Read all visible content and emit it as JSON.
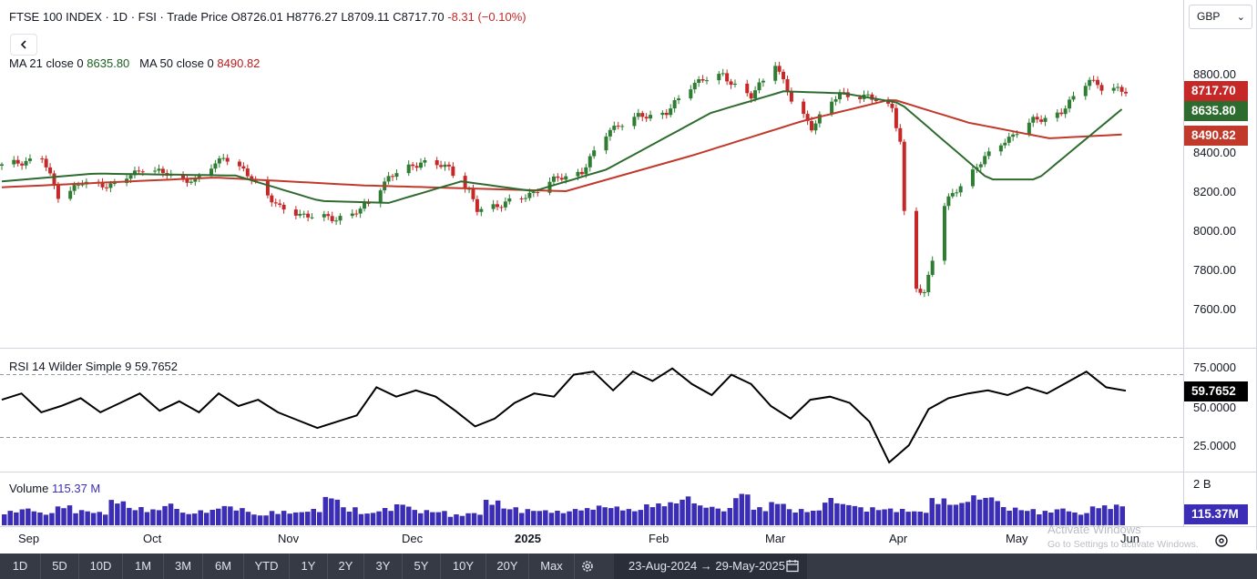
{
  "header": {
    "symbol": "FTSE 100 INDEX",
    "interval": "1D",
    "exchange": "FSI",
    "price_type": "Trade Price",
    "open": "O8726.01",
    "high": "H8776.27",
    "low": "L8709.11",
    "close": "C8717.70",
    "change": "-8.31 (−0.10%)"
  },
  "ma_legend": {
    "ma21_label": "MA 21 close 0",
    "ma21_value": "8635.80",
    "ma50_label": "MA 50 close 0",
    "ma50_value": "8490.82"
  },
  "currency": "GBP",
  "price_axis": {
    "ticks": [
      "8800.00",
      "8400.00",
      "8200.00",
      "8000.00",
      "7800.00",
      "7600.00"
    ],
    "last_price": "8717.70",
    "ma21_price": "8635.80",
    "ma50_price": "8490.82"
  },
  "rsi": {
    "label": "RSI 14 Wilder Simple 9",
    "value": "59.7652",
    "ticks": [
      "75.0000",
      "50.0000",
      "25.0000"
    ]
  },
  "volume": {
    "label": "Volume",
    "value": "115.37 M",
    "axis_top": "2 B",
    "axis_value": "115.37M"
  },
  "time_axis": [
    "Sep",
    "Oct",
    "Nov",
    "Dec",
    "2025",
    "Feb",
    "Mar",
    "Apr",
    "May",
    "Jun"
  ],
  "range_buttons": [
    "1D",
    "5D",
    "10D",
    "1M",
    "3M",
    "6M",
    "YTD",
    "1Y",
    "2Y",
    "3Y",
    "5Y",
    "10Y",
    "20Y",
    "Max"
  ],
  "date_range": "23-Aug-2024 → 29-May-2025",
  "watermark": {
    "line1": "Activate Windows",
    "line2": "Go to Settings to activate Windows."
  },
  "colors": {
    "up": "#2e7d32",
    "down": "#c62828",
    "ma21": "#2e6b2e",
    "ma50": "#c0392b",
    "volume": "#3b2db5",
    "rsi": "#000000"
  },
  "chart_data": [
    {
      "type": "candlestick",
      "title": "FTSE 100 INDEX · 1D · FSI",
      "x_range": [
        "23-Aug-2024",
        "29-May-2025"
      ],
      "ylim": [
        7520,
        8880
      ],
      "close_path": [
        {
          "date": "2024-08-23",
          "close": 8330
        },
        {
          "date": "2024-09-02",
          "close": 8370
        },
        {
          "date": "2024-09-06",
          "close": 8180
        },
        {
          "date": "2024-09-12",
          "close": 8240
        },
        {
          "date": "2024-09-20",
          "close": 8230
        },
        {
          "date": "2024-09-27",
          "close": 8320
        },
        {
          "date": "2024-10-04",
          "close": 8280
        },
        {
          "date": "2024-10-10",
          "close": 8250
        },
        {
          "date": "2024-10-17",
          "close": 8380
        },
        {
          "date": "2024-10-25",
          "close": 8250
        },
        {
          "date": "2024-10-31",
          "close": 8110
        },
        {
          "date": "2024-11-08",
          "close": 8070
        },
        {
          "date": "2024-11-14",
          "close": 8060
        },
        {
          "date": "2024-11-20",
          "close": 8100
        },
        {
          "date": "2024-11-27",
          "close": 8270
        },
        {
          "date": "2024-12-05",
          "close": 8350
        },
        {
          "date": "2024-12-12",
          "close": 8320
        },
        {
          "date": "2024-12-17",
          "close": 8200
        },
        {
          "date": "2024-12-19",
          "close": 8100
        },
        {
          "date": "2024-12-31",
          "close": 8170
        },
        {
          "date": "2025-01-06",
          "close": 8250
        },
        {
          "date": "2025-01-14",
          "close": 8300
        },
        {
          "date": "2025-01-21",
          "close": 8520
        },
        {
          "date": "2025-01-28",
          "close": 8580
        },
        {
          "date": "2025-02-04",
          "close": 8600
        },
        {
          "date": "2025-02-11",
          "close": 8760
        },
        {
          "date": "2025-02-18",
          "close": 8790
        },
        {
          "date": "2025-02-25",
          "close": 8680
        },
        {
          "date": "2025-03-03",
          "close": 8860
        },
        {
          "date": "2025-03-07",
          "close": 8660
        },
        {
          "date": "2025-03-12",
          "close": 8530
        },
        {
          "date": "2025-03-19",
          "close": 8700
        },
        {
          "date": "2025-03-26",
          "close": 8680
        },
        {
          "date": "2025-04-01",
          "close": 8630
        },
        {
          "date": "2025-04-03",
          "close": 8450
        },
        {
          "date": "2025-04-04",
          "close": 8080
        },
        {
          "date": "2025-04-07",
          "close": 7700
        },
        {
          "date": "2025-04-09",
          "close": 7680
        },
        {
          "date": "2025-04-14",
          "close": 8130
        },
        {
          "date": "2025-04-22",
          "close": 8330
        },
        {
          "date": "2025-04-29",
          "close": 8460
        },
        {
          "date": "2025-05-06",
          "close": 8560
        },
        {
          "date": "2025-05-13",
          "close": 8600
        },
        {
          "date": "2025-05-20",
          "close": 8780
        },
        {
          "date": "2025-05-23",
          "close": 8720
        },
        {
          "date": "2025-05-29",
          "close": 8717.7
        }
      ],
      "ma21_path": [
        {
          "date": "2024-08-23",
          "value": 8250
        },
        {
          "date": "2024-09-15",
          "value": 8290
        },
        {
          "date": "2024-10-20",
          "value": 8280
        },
        {
          "date": "2024-11-10",
          "value": 8150
        },
        {
          "date": "2024-11-27",
          "value": 8140
        },
        {
          "date": "2024-12-15",
          "value": 8250
        },
        {
          "date": "2025-01-02",
          "value": 8200
        },
        {
          "date": "2025-01-20",
          "value": 8310
        },
        {
          "date": "2025-02-15",
          "value": 8600
        },
        {
          "date": "2025-03-05",
          "value": 8710
        },
        {
          "date": "2025-03-20",
          "value": 8700
        },
        {
          "date": "2025-04-03",
          "value": 8650
        },
        {
          "date": "2025-04-25",
          "value": 8260
        },
        {
          "date": "2025-05-07",
          "value": 8260
        },
        {
          "date": "2025-05-29",
          "value": 8635.8
        }
      ],
      "ma50_path": [
        {
          "date": "2024-08-23",
          "value": 8220
        },
        {
          "date": "2024-10-15",
          "value": 8270
        },
        {
          "date": "2024-11-20",
          "value": 8230
        },
        {
          "date": "2025-01-10",
          "value": 8200
        },
        {
          "date": "2025-02-10",
          "value": 8380
        },
        {
          "date": "2025-03-10",
          "value": 8560
        },
        {
          "date": "2025-04-01",
          "value": 8670
        },
        {
          "date": "2025-04-20",
          "value": 8550
        },
        {
          "date": "2025-05-10",
          "value": 8470
        },
        {
          "date": "2025-05-29",
          "value": 8490.82
        }
      ]
    },
    {
      "type": "line",
      "title": "RSI 14 Wilder Simple 9",
      "ylim": [
        5,
        85
      ],
      "reference_lines": [
        70,
        30
      ],
      "values": [
        54,
        58,
        46,
        50,
        55,
        46,
        52,
        58,
        47,
        53,
        46,
        58,
        50,
        54,
        46,
        41,
        36,
        40,
        44,
        62,
        56,
        60,
        56,
        47,
        37,
        42,
        52,
        58,
        56,
        70,
        72,
        60,
        72,
        66,
        74,
        64,
        57,
        70,
        64,
        50,
        42,
        54,
        56,
        52,
        40,
        14,
        25,
        48,
        55,
        58,
        60,
        57,
        62,
        58,
        65,
        72,
        62,
        59.7652
      ]
    },
    {
      "type": "bar",
      "title": "Volume",
      "unit": "M",
      "values": [
        80,
        95,
        70,
        110,
        85,
        75,
        140,
        100,
        90,
        120,
        70,
        85,
        110,
        95,
        60,
        80,
        75,
        90,
        160,
        100,
        70,
        95,
        120,
        85,
        80,
        60,
        70,
        140,
        100,
        90,
        85,
        80,
        95,
        110,
        105,
        90,
        120,
        130,
        160,
        110,
        95,
        180,
        100,
        130,
        90,
        85,
        150,
        120,
        100,
        95,
        90,
        80,
        150,
        125,
        165,
        160,
        100,
        90,
        80,
        95,
        70,
        110,
        115.37
      ]
    }
  ]
}
